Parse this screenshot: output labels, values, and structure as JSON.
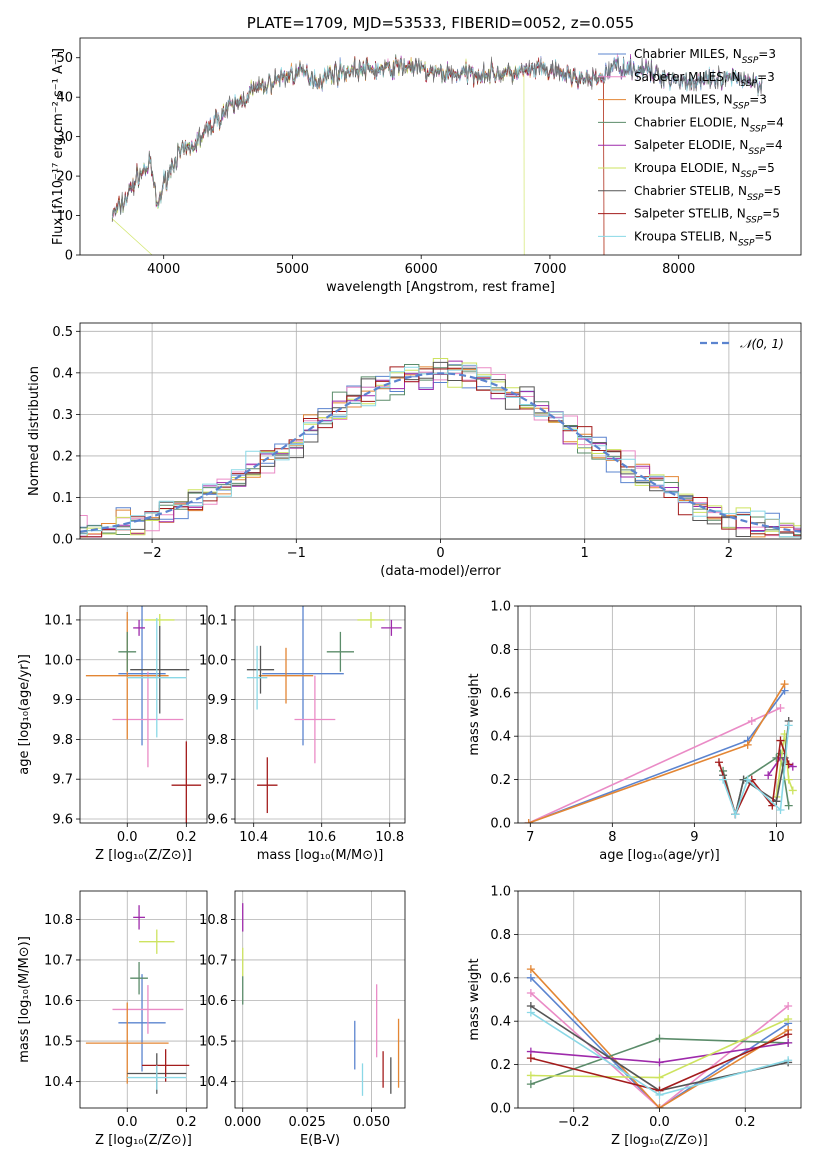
{
  "colors": {
    "Chabrier MILES": "#5b84cf",
    "Salpeter MILES": "#ea8bc6",
    "Kroupa MILES": "#e38634",
    "Chabrier ELODIE": "#5b8c6a",
    "Salpeter ELODIE": "#9e2aab",
    "Kroupa ELODIE": "#cde35f",
    "Chabrier STELIB": "#555555",
    "Salpeter STELIB": "#a31c1c",
    "Kroupa STELIB": "#8ad8e6",
    "normal": "#5b84cf"
  },
  "chart_data": [
    {
      "id": "spectrum",
      "type": "line",
      "title": "PLATE=1709, MJD=53533, FIBERID=0052, z=0.055",
      "xlabel": "wavelength [Angstrom, rest frame]",
      "ylabel": "Flux [fλ10⁻¹⁷ erg cm⁻² s⁻¹ A⁻¹]",
      "xlim": [
        3350,
        8950
      ],
      "ylim": [
        0,
        55
      ],
      "xticks": [
        4000,
        5000,
        6000,
        7000,
        8000
      ],
      "yticks": [
        0,
        10,
        20,
        30,
        40,
        50
      ],
      "legend_position": "upper right",
      "legend": [
        {
          "name": "Chabrier MILES",
          "nssp": "3"
        },
        {
          "name": "Salpeter MILES",
          "nssp": "3"
        },
        {
          "name": "Kroupa MILES",
          "nssp": "3"
        },
        {
          "name": "Chabrier ELODIE",
          "nssp": "4"
        },
        {
          "name": "Salpeter ELODIE",
          "nssp": "4"
        },
        {
          "name": "Kroupa ELODIE",
          "nssp": "5"
        },
        {
          "name": "Chabrier STELIB",
          "nssp": "5"
        },
        {
          "name": "Salpeter STELIB",
          "nssp": "5"
        },
        {
          "name": "Kroupa STELIB",
          "nssp": "5"
        }
      ],
      "continuum_knots": [
        [
          3600,
          10
        ],
        [
          3700,
          14
        ],
        [
          3800,
          20
        ],
        [
          3900,
          23
        ],
        [
          3950,
          12
        ],
        [
          4000,
          18
        ],
        [
          4100,
          25
        ],
        [
          4200,
          27
        ],
        [
          4300,
          30
        ],
        [
          4400,
          34
        ],
        [
          4500,
          37
        ],
        [
          4600,
          39
        ],
        [
          4700,
          42
        ],
        [
          4800,
          43
        ],
        [
          4900,
          45
        ],
        [
          5000,
          46
        ],
        [
          5100,
          46
        ],
        [
          5200,
          44
        ],
        [
          5300,
          46
        ],
        [
          5500,
          47
        ],
        [
          5700,
          47
        ],
        [
          5900,
          48
        ],
        [
          6100,
          46
        ],
        [
          6300,
          46
        ],
        [
          6500,
          46
        ],
        [
          6700,
          46
        ],
        [
          6900,
          47
        ],
        [
          7100,
          46
        ],
        [
          7300,
          44
        ],
        [
          7400,
          45
        ],
        [
          7500,
          48
        ],
        [
          7700,
          47
        ],
        [
          7900,
          45
        ],
        [
          8100,
          44
        ],
        [
          8300,
          44
        ],
        [
          8500,
          45
        ],
        [
          8650,
          43
        ]
      ],
      "model_cutoffs": {
        "Kroupa ELODIE": [
          3900,
          6800
        ],
        "Salpeter STELIB": [
          3600,
          7420
        ],
        "Kroupa MILES": [
          3600,
          7420
        ]
      }
    },
    {
      "id": "residuals",
      "type": "histogram",
      "xlabel": "(data-model)/error",
      "ylabel": "Normed distribution",
      "xlim": [
        -2.5,
        2.5
      ],
      "ylim": [
        0,
        0.52
      ],
      "xticks": [
        -2,
        -1,
        0,
        1,
        2
      ],
      "yticks": [
        0.0,
        0.1,
        0.2,
        0.3,
        0.4,
        0.5
      ],
      "bin_width": 0.1,
      "legend": "𝒩(0, 1)",
      "legend_position": "upper right"
    },
    {
      "id": "age_vs_Z",
      "type": "errorbar",
      "xlabel": "Z [log₁₀(Z/Z⊙)]",
      "ylabel": "age  [log₁₀(age/yr)]",
      "xlim": [
        -0.16,
        0.27
      ],
      "ylim": [
        9.59,
        10.135
      ],
      "xticks": [
        0.0,
        0.2
      ],
      "yticks": [
        9.6,
        9.7,
        9.8,
        9.9,
        10.0,
        10.1
      ],
      "points": [
        {
          "model": "Chabrier MILES",
          "x": 0.05,
          "xerr": 0.08,
          "y": 9.965,
          "yerr": 0.18
        },
        {
          "model": "Salpeter MILES",
          "x": 0.07,
          "xerr": 0.12,
          "y": 9.85,
          "yerr": 0.12
        },
        {
          "model": "Kroupa MILES",
          "x": 0.0,
          "xerr": 0.14,
          "y": 9.96,
          "yerr": 0.16
        },
        {
          "model": "Chabrier ELODIE",
          "x": 0.0,
          "xerr": 0.03,
          "y": 10.02,
          "yerr": 0.05
        },
        {
          "model": "Salpeter ELODIE",
          "x": 0.04,
          "xerr": 0.02,
          "y": 10.08,
          "yerr": 0.02
        },
        {
          "model": "Kroupa ELODIE",
          "x": 0.11,
          "xerr": 0.05,
          "y": 10.1,
          "yerr": 0.015
        },
        {
          "model": "Chabrier STELIB",
          "x": 0.11,
          "xerr": 0.1,
          "y": 9.975,
          "yerr": 0.11
        },
        {
          "model": "Salpeter STELIB",
          "x": 0.2,
          "xerr": 0.05,
          "y": 9.685,
          "yerr": 0.11
        },
        {
          "model": "Kroupa STELIB",
          "x": 0.1,
          "xerr": 0.1,
          "y": 9.955,
          "yerr": 0.15
        }
      ]
    },
    {
      "id": "age_vs_mass",
      "type": "errorbar",
      "xlabel": "mass [log₁₀(M/M⊙)]",
      "ylabel": "",
      "xlim": [
        10.345,
        10.845
      ],
      "ylim": [
        9.59,
        10.135
      ],
      "xticks": [
        10.4,
        10.6,
        10.8
      ],
      "yticks": [
        9.6,
        9.7,
        9.8,
        9.9,
        10.0,
        10.1
      ],
      "points": [
        {
          "model": "Chabrier MILES",
          "x": 10.545,
          "xerr": 0.12,
          "y": 9.965,
          "yerr": 0.18
        },
        {
          "model": "Salpeter MILES",
          "x": 10.58,
          "xerr": 0.06,
          "y": 9.85,
          "yerr": 0.11
        },
        {
          "model": "Kroupa MILES",
          "x": 10.495,
          "xerr": 0.08,
          "y": 9.96,
          "yerr": 0.07
        },
        {
          "model": "Chabrier ELODIE",
          "x": 10.655,
          "xerr": 0.04,
          "y": 10.02,
          "yerr": 0.05
        },
        {
          "model": "Salpeter ELODIE",
          "x": 10.805,
          "xerr": 0.03,
          "y": 10.08,
          "yerr": 0.02
        },
        {
          "model": "Kroupa ELODIE",
          "x": 10.745,
          "xerr": 0.04,
          "y": 10.1,
          "yerr": 0.02
        },
        {
          "model": "Chabrier STELIB",
          "x": 10.42,
          "xerr": 0.04,
          "y": 9.975,
          "yerr": 0.06
        },
        {
          "model": "Salpeter STELIB",
          "x": 10.44,
          "xerr": 0.03,
          "y": 9.685,
          "yerr": 0.07
        },
        {
          "model": "Kroupa STELIB",
          "x": 10.41,
          "xerr": 0.03,
          "y": 9.955,
          "yerr": 0.08
        }
      ]
    },
    {
      "id": "weight_vs_age",
      "type": "line",
      "xlabel": "age  [log₁₀(age/yr)]",
      "ylabel": "mass weight",
      "xlim": [
        6.85,
        10.3
      ],
      "ylim": [
        0.0,
        1.0
      ],
      "xticks": [
        7,
        8,
        9,
        10
      ],
      "yticks": [
        0.0,
        0.2,
        0.4,
        0.6,
        0.8,
        1.0
      ],
      "series": [
        {
          "model": "Chabrier MILES",
          "x": [
            6.98,
            9.65,
            10.1
          ],
          "y": [
            0.0,
            0.38,
            0.61
          ]
        },
        {
          "model": "Salpeter MILES",
          "x": [
            6.98,
            9.7,
            10.05
          ],
          "y": [
            0.0,
            0.47,
            0.53
          ]
        },
        {
          "model": "Kroupa MILES",
          "x": [
            6.98,
            9.65,
            10.1
          ],
          "y": [
            0.0,
            0.36,
            0.64
          ]
        },
        {
          "model": "Chabrier ELODIE",
          "x": [
            9.35,
            9.5,
            9.6,
            10.0,
            10.05,
            10.15
          ],
          "y": [
            0.24,
            0.04,
            0.2,
            0.3,
            0.32,
            0.08
          ]
        },
        {
          "model": "Salpeter ELODIE",
          "x": [
            9.9,
            10.05,
            10.2
          ],
          "y": [
            0.22,
            0.3,
            0.26
          ]
        },
        {
          "model": "Kroupa ELODIE",
          "x": [
            10.0,
            10.1,
            10.15,
            10.2
          ],
          "y": [
            0.12,
            0.41,
            0.2,
            0.15
          ]
        },
        {
          "model": "Chabrier STELIB",
          "x": [
            9.35,
            9.5,
            9.6,
            10.0,
            10.1,
            10.15
          ],
          "y": [
            0.22,
            0.04,
            0.2,
            0.1,
            0.3,
            0.47
          ]
        },
        {
          "model": "Salpeter STELIB",
          "x": [
            9.3,
            9.5,
            9.7,
            9.95,
            10.05,
            10.15
          ],
          "y": [
            0.28,
            0.04,
            0.2,
            0.08,
            0.38,
            0.27
          ]
        },
        {
          "model": "Kroupa STELIB",
          "x": [
            9.35,
            9.5,
            9.65,
            10.05,
            10.15
          ],
          "y": [
            0.2,
            0.04,
            0.2,
            0.06,
            0.45
          ]
        }
      ]
    },
    {
      "id": "mass_vs_Z",
      "type": "errorbar",
      "xlabel": "Z [log₁₀(Z/Z⊙)]",
      "ylabel": "mass [log₁₀(M/M⊙)]",
      "xlim": [
        -0.16,
        0.27
      ],
      "ylim": [
        10.335,
        10.87
      ],
      "xticks": [
        0.0,
        0.2
      ],
      "yticks": [
        10.4,
        10.5,
        10.6,
        10.7,
        10.8
      ],
      "points": [
        {
          "model": "Chabrier MILES",
          "x": 0.05,
          "xerr": 0.08,
          "y": 10.545,
          "yerr": 0.12
        },
        {
          "model": "Salpeter MILES",
          "x": 0.07,
          "xerr": 0.12,
          "y": 10.578,
          "yerr": 0.06
        },
        {
          "model": "Kroupa MILES",
          "x": 0.0,
          "xerr": 0.14,
          "y": 10.495,
          "yerr": 0.1
        },
        {
          "model": "Chabrier ELODIE",
          "x": 0.04,
          "xerr": 0.03,
          "y": 10.655,
          "yerr": 0.04
        },
        {
          "model": "Salpeter ELODIE",
          "x": 0.04,
          "xerr": 0.02,
          "y": 10.805,
          "yerr": 0.03
        },
        {
          "model": "Kroupa ELODIE",
          "x": 0.1,
          "xerr": 0.06,
          "y": 10.745,
          "yerr": 0.03
        },
        {
          "model": "Chabrier STELIB",
          "x": 0.1,
          "xerr": 0.1,
          "y": 10.42,
          "yerr": 0.05
        },
        {
          "model": "Salpeter STELIB",
          "x": 0.13,
          "xerr": 0.08,
          "y": 10.44,
          "yerr": 0.04
        },
        {
          "model": "Kroupa STELIB",
          "x": 0.1,
          "xerr": 0.1,
          "y": 10.41,
          "yerr": 0.03
        }
      ]
    },
    {
      "id": "mass_vs_ebv",
      "type": "errorbar",
      "xlabel": "E(B-V)",
      "ylabel": "",
      "xlim": [
        -0.003,
        0.063
      ],
      "ylim": [
        10.335,
        10.87
      ],
      "xticks": [
        0.0,
        0.025,
        0.05
      ],
      "yticks": [
        10.4,
        10.5,
        10.6,
        10.7,
        10.8
      ],
      "points": [
        {
          "model": "Chabrier MILES",
          "x": 0.0435,
          "xerr": 0,
          "y": 10.49,
          "yerr": 0.06
        },
        {
          "model": "Salpeter MILES",
          "x": 0.052,
          "xerr": 0,
          "y": 10.55,
          "yerr": 0.09
        },
        {
          "model": "Kroupa MILES",
          "x": 0.0605,
          "xerr": 0,
          "y": 10.47,
          "yerr": 0.085
        },
        {
          "model": "Chabrier ELODIE",
          "x": 0.0,
          "xerr": 0,
          "y": 10.625,
          "yerr": 0.035
        },
        {
          "model": "Salpeter ELODIE",
          "x": 0.0,
          "xerr": 0,
          "y": 10.805,
          "yerr": 0.035
        },
        {
          "model": "Kroupa ELODIE",
          "x": 0.0,
          "xerr": 0,
          "y": 10.695,
          "yerr": 0.035
        },
        {
          "model": "Chabrier STELIB",
          "x": 0.0575,
          "xerr": 0,
          "y": 10.415,
          "yerr": 0.045
        },
        {
          "model": "Salpeter STELIB",
          "x": 0.0545,
          "xerr": 0,
          "y": 10.43,
          "yerr": 0.045
        },
        {
          "model": "Kroupa STELIB",
          "x": 0.0465,
          "xerr": 0,
          "y": 10.405,
          "yerr": 0.04
        }
      ]
    },
    {
      "id": "weight_vs_Z",
      "type": "line",
      "xlabel": "Z [log₁₀(Z/Z⊙)]",
      "ylabel": "mass weight",
      "xlim": [
        -0.33,
        0.33
      ],
      "ylim": [
        0.0,
        1.0
      ],
      "xticks": [
        -0.2,
        0.0,
        0.2
      ],
      "yticks": [
        0.0,
        0.2,
        0.4,
        0.6,
        0.8,
        1.0
      ],
      "series": [
        {
          "model": "Chabrier MILES",
          "x": [
            -0.3,
            0.0,
            0.3
          ],
          "y": [
            0.6,
            0.0,
            0.39
          ]
        },
        {
          "model": "Salpeter MILES",
          "x": [
            -0.3,
            0.0,
            0.3
          ],
          "y": [
            0.53,
            0.0,
            0.47
          ]
        },
        {
          "model": "Kroupa MILES",
          "x": [
            -0.3,
            0.0,
            0.3
          ],
          "y": [
            0.64,
            0.0,
            0.36
          ]
        },
        {
          "model": "Chabrier ELODIE",
          "x": [
            -0.3,
            0.0,
            0.3
          ],
          "y": [
            0.11,
            0.32,
            0.3
          ]
        },
        {
          "model": "Salpeter ELODIE",
          "x": [
            -0.3,
            0.0,
            0.3
          ],
          "y": [
            0.26,
            0.21,
            0.3
          ]
        },
        {
          "model": "Kroupa ELODIE",
          "x": [
            -0.3,
            0.0,
            0.3
          ],
          "y": [
            0.15,
            0.14,
            0.41
          ]
        },
        {
          "model": "Chabrier STELIB",
          "x": [
            -0.3,
            0.0,
            0.3
          ],
          "y": [
            0.47,
            0.08,
            0.21
          ]
        },
        {
          "model": "Salpeter STELIB",
          "x": [
            -0.3,
            0.0,
            0.3
          ],
          "y": [
            0.23,
            0.08,
            0.34
          ]
        },
        {
          "model": "Kroupa STELIB",
          "x": [
            -0.3,
            0.0,
            0.3
          ],
          "y": [
            0.44,
            0.06,
            0.22
          ]
        }
      ]
    }
  ]
}
